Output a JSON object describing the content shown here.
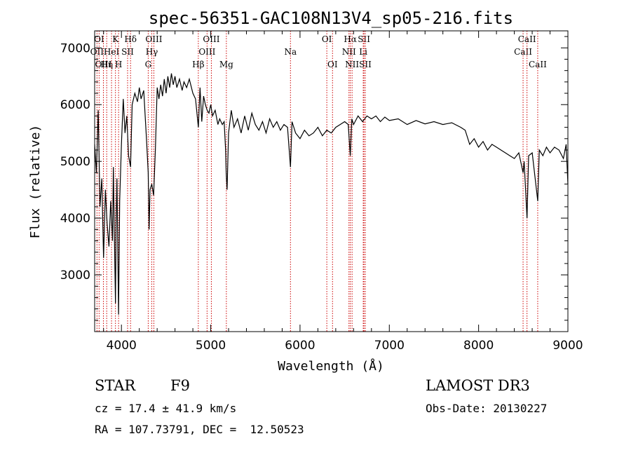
{
  "chart_data": {
    "type": "line",
    "title": "spec-56351-GAC108N13V4_sp05-216.fits",
    "xlabel": "Wavelength (Å)",
    "ylabel": "Flux (relative)",
    "xlim": [
      3700,
      9000
    ],
    "ylim": [
      2000,
      7300
    ],
    "x_ticks": [
      4000,
      5000,
      6000,
      7000,
      8000,
      9000
    ],
    "y_ticks": [
      3000,
      4000,
      5000,
      6000,
      7000
    ],
    "series": [
      {
        "name": "spectrum",
        "points": [
          [
            3700,
            5300
          ],
          [
            3720,
            4800
          ],
          [
            3740,
            5900
          ],
          [
            3760,
            4200
          ],
          [
            3780,
            4700
          ],
          [
            3800,
            3300
          ],
          [
            3820,
            4500
          ],
          [
            3840,
            3900
          ],
          [
            3860,
            3500
          ],
          [
            3880,
            4300
          ],
          [
            3900,
            3600
          ],
          [
            3910,
            4900
          ],
          [
            3920,
            3800
          ],
          [
            3933,
            2500
          ],
          [
            3940,
            3900
          ],
          [
            3950,
            4700
          ],
          [
            3968,
            2300
          ],
          [
            3980,
            4300
          ],
          [
            4000,
            5300
          ],
          [
            4020,
            6100
          ],
          [
            4040,
            5500
          ],
          [
            4060,
            5800
          ],
          [
            4080,
            5100
          ],
          [
            4102,
            4900
          ],
          [
            4120,
            6000
          ],
          [
            4150,
            6200
          ],
          [
            4180,
            6050
          ],
          [
            4200,
            6300
          ],
          [
            4220,
            6100
          ],
          [
            4250,
            6250
          ],
          [
            4280,
            5400
          ],
          [
            4300,
            4800
          ],
          [
            4310,
            3800
          ],
          [
            4320,
            4500
          ],
          [
            4340,
            4600
          ],
          [
            4360,
            4400
          ],
          [
            4380,
            5200
          ],
          [
            4400,
            6300
          ],
          [
            4420,
            6100
          ],
          [
            4440,
            6350
          ],
          [
            4460,
            6150
          ],
          [
            4480,
            6450
          ],
          [
            4500,
            6200
          ],
          [
            4520,
            6500
          ],
          [
            4540,
            6300
          ],
          [
            4560,
            6550
          ],
          [
            4580,
            6350
          ],
          [
            4600,
            6500
          ],
          [
            4620,
            6300
          ],
          [
            4650,
            6450
          ],
          [
            4680,
            6250
          ],
          [
            4700,
            6400
          ],
          [
            4730,
            6300
          ],
          [
            4760,
            6450
          ],
          [
            4800,
            6200
          ],
          [
            4830,
            6100
          ],
          [
            4861,
            5600
          ],
          [
            4880,
            6300
          ],
          [
            4900,
            5700
          ],
          [
            4920,
            6150
          ],
          [
            4940,
            6000
          ],
          [
            4960,
            5900
          ],
          [
            4980,
            5850
          ],
          [
            5000,
            6000
          ],
          [
            5020,
            5800
          ],
          [
            5050,
            5900
          ],
          [
            5080,
            5650
          ],
          [
            5100,
            5750
          ],
          [
            5130,
            5650
          ],
          [
            5150,
            5700
          ],
          [
            5167,
            5200
          ],
          [
            5173,
            4800
          ],
          [
            5183,
            4500
          ],
          [
            5200,
            5500
          ],
          [
            5230,
            5900
          ],
          [
            5260,
            5600
          ],
          [
            5300,
            5750
          ],
          [
            5340,
            5500
          ],
          [
            5380,
            5800
          ],
          [
            5420,
            5550
          ],
          [
            5460,
            5850
          ],
          [
            5500,
            5650
          ],
          [
            5540,
            5550
          ],
          [
            5580,
            5700
          ],
          [
            5620,
            5500
          ],
          [
            5660,
            5750
          ],
          [
            5700,
            5600
          ],
          [
            5740,
            5700
          ],
          [
            5780,
            5550
          ],
          [
            5820,
            5650
          ],
          [
            5860,
            5600
          ],
          [
            5893,
            4900
          ],
          [
            5910,
            5700
          ],
          [
            5950,
            5500
          ],
          [
            6000,
            5400
          ],
          [
            6050,
            5550
          ],
          [
            6100,
            5450
          ],
          [
            6150,
            5500
          ],
          [
            6200,
            5600
          ],
          [
            6250,
            5450
          ],
          [
            6300,
            5550
          ],
          [
            6350,
            5500
          ],
          [
            6400,
            5600
          ],
          [
            6450,
            5650
          ],
          [
            6500,
            5700
          ],
          [
            6540,
            5650
          ],
          [
            6563,
            5100
          ],
          [
            6580,
            5750
          ],
          [
            6600,
            5650
          ],
          [
            6650,
            5800
          ],
          [
            6700,
            5700
          ],
          [
            6750,
            5800
          ],
          [
            6800,
            5750
          ],
          [
            6850,
            5800
          ],
          [
            6900,
            5700
          ],
          [
            6950,
            5780
          ],
          [
            7000,
            5720
          ],
          [
            7100,
            5750
          ],
          [
            7200,
            5650
          ],
          [
            7300,
            5720
          ],
          [
            7400,
            5660
          ],
          [
            7500,
            5700
          ],
          [
            7600,
            5650
          ],
          [
            7700,
            5680
          ],
          [
            7800,
            5600
          ],
          [
            7850,
            5550
          ],
          [
            7900,
            5300
          ],
          [
            7950,
            5400
          ],
          [
            8000,
            5250
          ],
          [
            8050,
            5350
          ],
          [
            8100,
            5200
          ],
          [
            8150,
            5300
          ],
          [
            8200,
            5250
          ],
          [
            8250,
            5200
          ],
          [
            8300,
            5150
          ],
          [
            8350,
            5100
          ],
          [
            8400,
            5050
          ],
          [
            8450,
            5150
          ],
          [
            8498,
            4800
          ],
          [
            8510,
            5000
          ],
          [
            8542,
            4000
          ],
          [
            8560,
            5100
          ],
          [
            8600,
            5150
          ],
          [
            8662,
            4300
          ],
          [
            8680,
            5200
          ],
          [
            8720,
            5100
          ],
          [
            8760,
            5250
          ],
          [
            8800,
            5150
          ],
          [
            8850,
            5250
          ],
          [
            8900,
            5200
          ],
          [
            8950,
            5050
          ],
          [
            8980,
            5300
          ],
          [
            9000,
            4600
          ]
        ]
      }
    ],
    "lines": [
      {
        "w": 3726,
        "row": 2,
        "label": "OII"
      },
      {
        "w": 3750,
        "row": 1,
        "label": "OI"
      },
      {
        "w": 3798,
        "row": 3,
        "label": "OIII"
      },
      {
        "w": 3835,
        "row": 3,
        "label": "Hη"
      },
      {
        "w": 3889,
        "row": 2,
        "label": "HeI"
      },
      {
        "w": 3933,
        "row": 1,
        "label": "K"
      },
      {
        "w": 3968,
        "row": 3,
        "label": "H"
      },
      {
        "w": 4069,
        "row": 2,
        "label": "SII"
      },
      {
        "w": 4102,
        "row": 1,
        "label": "Hδ"
      },
      {
        "w": 4300,
        "row": 3,
        "label": "G"
      },
      {
        "w": 4340,
        "row": 2,
        "label": "Hγ"
      },
      {
        "w": 4363,
        "row": 1,
        "label": "OIII"
      },
      {
        "w": 4861,
        "row": 3,
        "label": "Hβ"
      },
      {
        "w": 4959,
        "row": 2,
        "label": "OIII"
      },
      {
        "w": 5007,
        "row": 1,
        "label": "OIII"
      },
      {
        "w": 5175,
        "row": 3,
        "label": "Mg"
      },
      {
        "w": 5893,
        "row": 2,
        "label": "Na"
      },
      {
        "w": 6300,
        "row": 1,
        "label": "OI"
      },
      {
        "w": 6364,
        "row": 3,
        "label": "OI"
      },
      {
        "w": 6548,
        "row": 2,
        "label": "NII"
      },
      {
        "w": 6563,
        "row": 1,
        "label": "Hα"
      },
      {
        "w": 6583,
        "row": 3,
        "label": "NII"
      },
      {
        "w": 6708,
        "row": 2,
        "label": "Li"
      },
      {
        "w": 6716,
        "row": 1,
        "label": "SII"
      },
      {
        "w": 6731,
        "row": 3,
        "label": "SII"
      },
      {
        "w": 8498,
        "row": 2,
        "label": "CaII"
      },
      {
        "w": 8542,
        "row": 1,
        "label": "CaII"
      },
      {
        "w": 8662,
        "row": 3,
        "label": "CaII"
      }
    ]
  },
  "info": {
    "obj_class": "STAR",
    "subclass": "F9",
    "survey": "LAMOST DR3",
    "cz": "cz = 17.4 ± 41.9 km/s",
    "obs_date": "Obs-Date: 20130227",
    "coords": "RA = 107.73791, DEC =  12.50523"
  },
  "colors": {
    "line_marker": "#cc0000",
    "spectrum": "#000000"
  }
}
